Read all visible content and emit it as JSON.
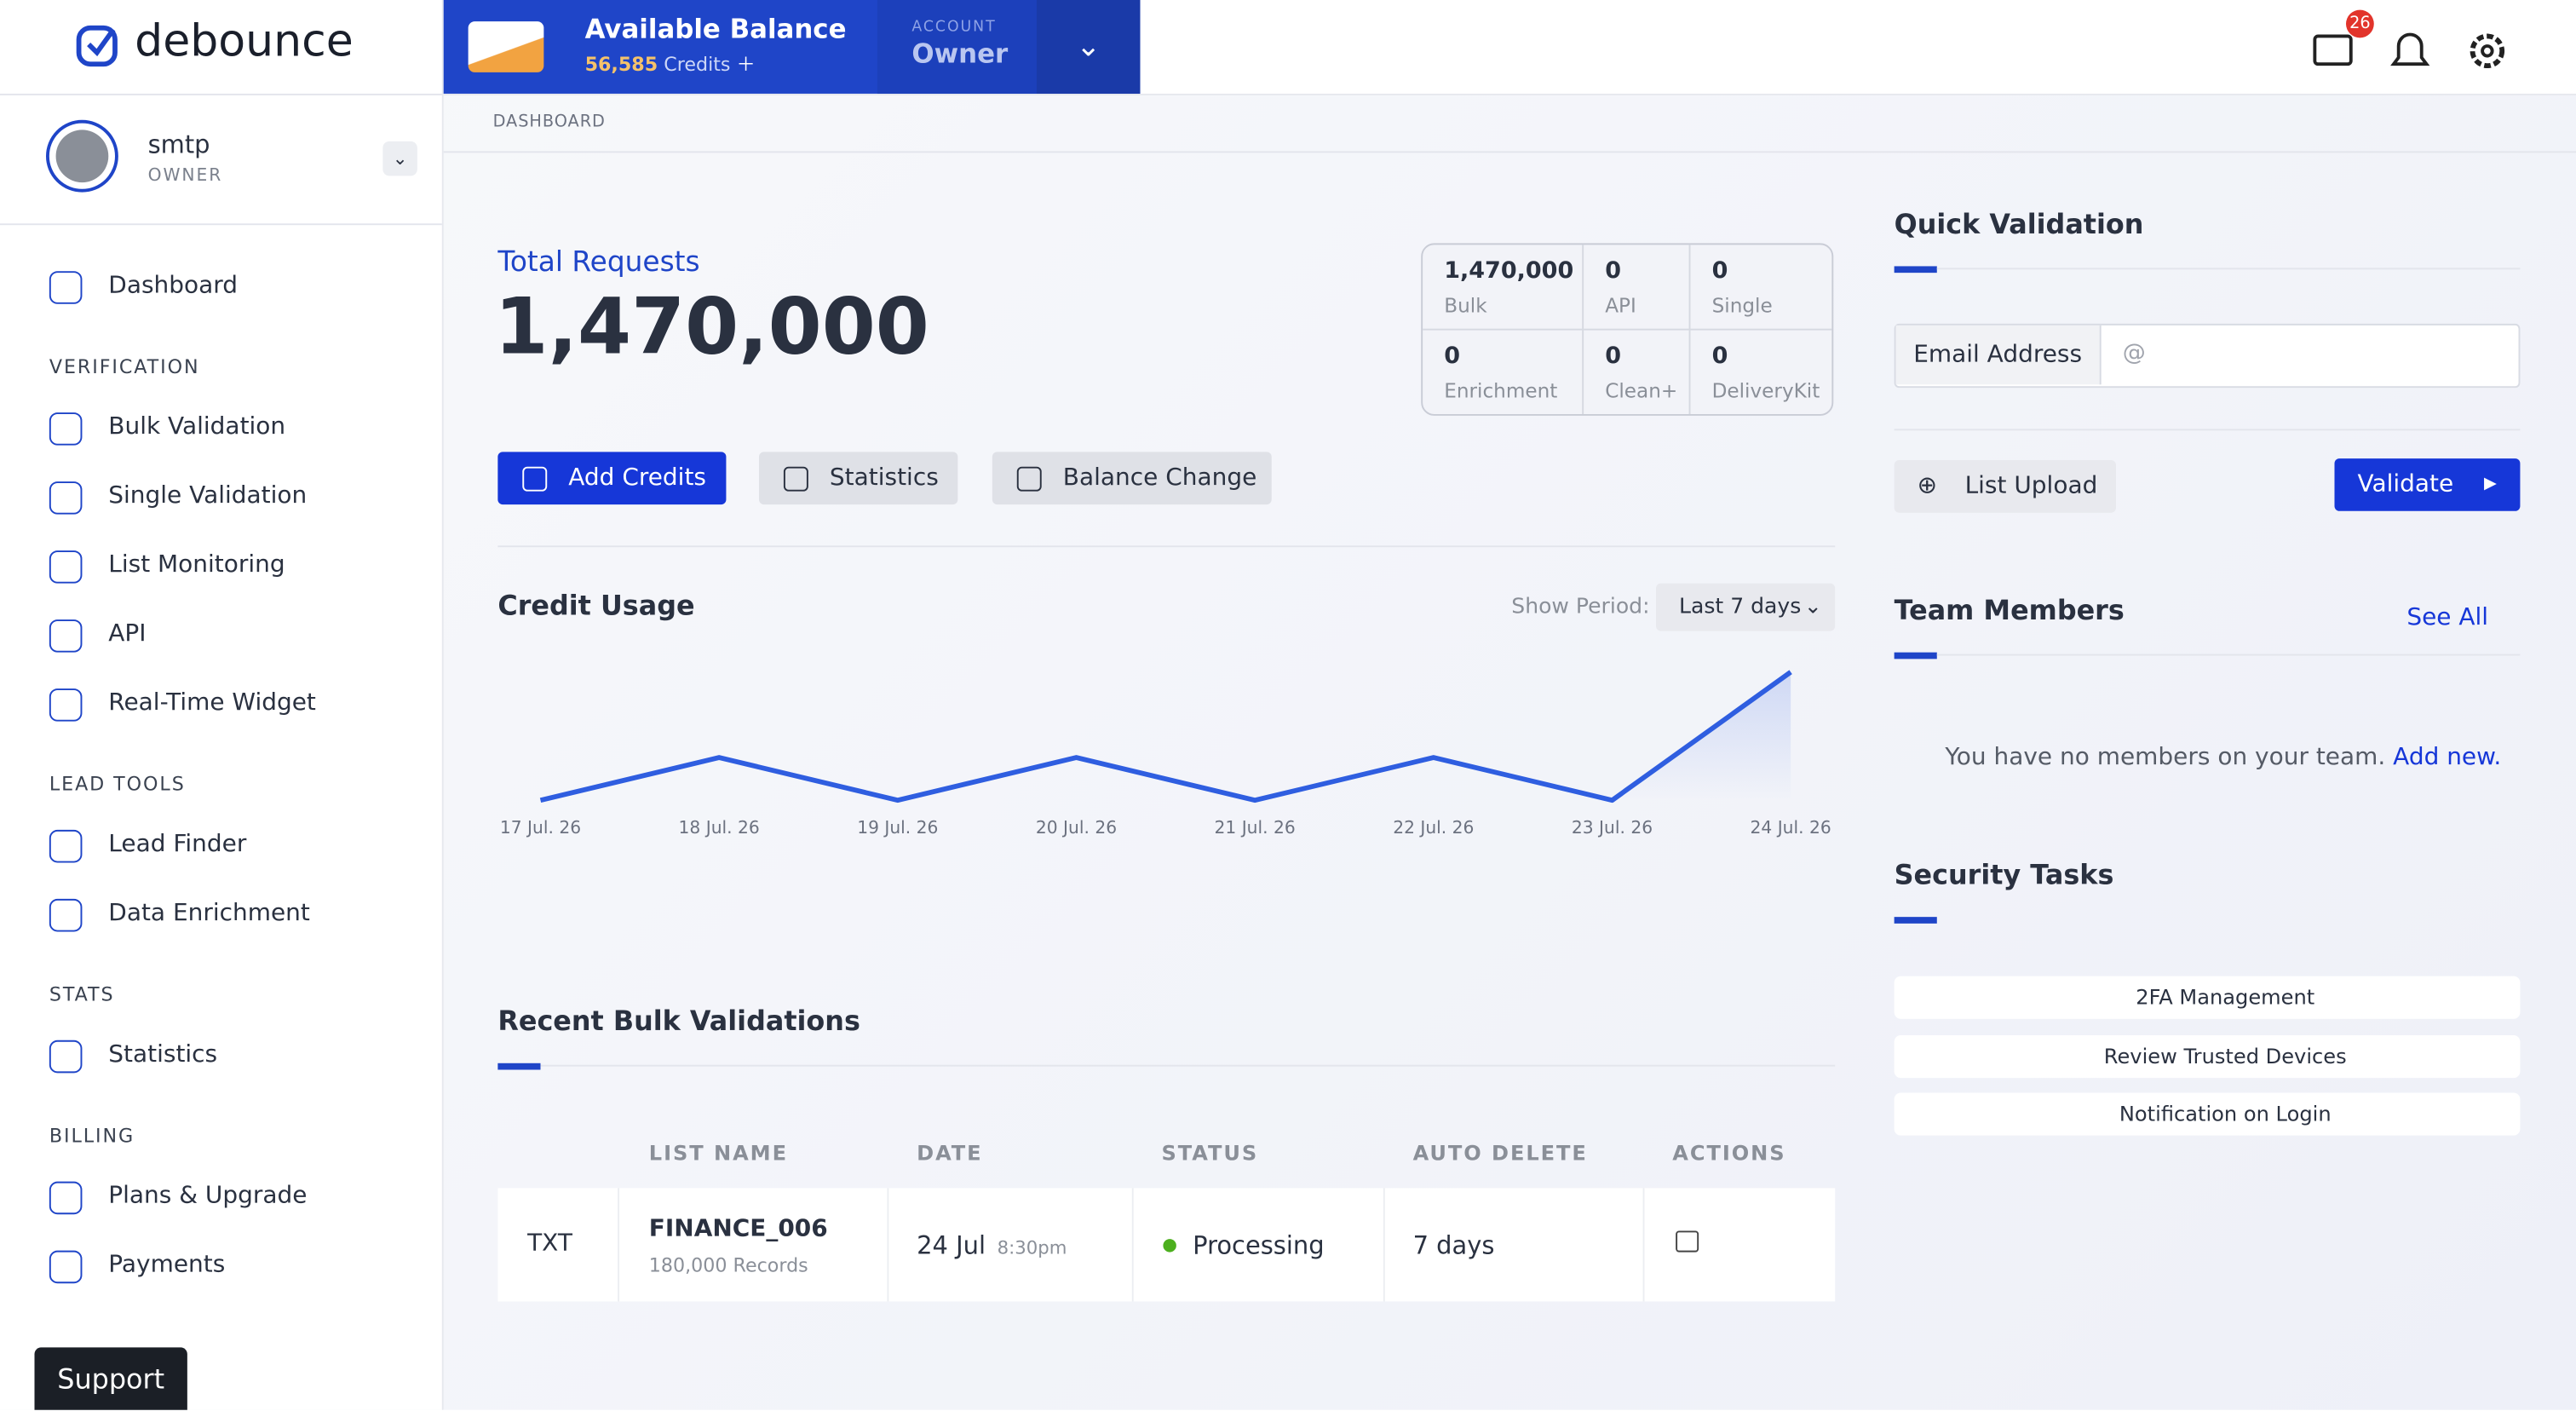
{
  "brand": "debounce",
  "balance": {
    "title": "Available Balance",
    "credits": "56,585",
    "credits_unit": "Credits",
    "account_label": "ACCOUNT",
    "account_role": "Owner"
  },
  "notifications": {
    "count": 26
  },
  "user": {
    "name": "smtp",
    "role": "OWNER"
  },
  "nav": {
    "top": [
      "Dashboard"
    ],
    "sections": [
      {
        "title": "VERIFICATION",
        "items": [
          "Bulk Validation",
          "Single Validation",
          "List Monitoring",
          "API",
          "Real-Time Widget"
        ]
      },
      {
        "title": "LEAD TOOLS",
        "items": [
          "Lead Finder",
          "Data Enrichment"
        ]
      },
      {
        "title": "STATS",
        "items": [
          "Statistics"
        ]
      },
      {
        "title": "BILLING",
        "items": [
          "Plans & Upgrade",
          "Payments"
        ]
      }
    ]
  },
  "breadcrumb": "DASHBOARD",
  "total": {
    "label": "Total Requests",
    "value": "1,470,000"
  },
  "breakdown": [
    {
      "value": "1,470,000",
      "label": "Bulk"
    },
    {
      "value": 0,
      "label": "API"
    },
    {
      "value": 0,
      "label": "Single"
    },
    {
      "value": 0,
      "label": "Enrichment"
    },
    {
      "value": 0,
      "label": "Clean+"
    },
    {
      "value": 0,
      "label": "DeliveryKit"
    }
  ],
  "buttons": [
    "Add Credits",
    "Statistics",
    "Balance Change"
  ],
  "credit_usage": {
    "type": "line",
    "title": "Credit Usage",
    "period_label": "Show Period:",
    "period": "Last 7 days",
    "categories": [
      "17 Jul. 26",
      "18 Jul. 26",
      "19 Jul. 26",
      "20 Jul. 26",
      "21 Jul. 26",
      "22 Jul. 26",
      "23 Jul. 26",
      "24 Jul. 26"
    ],
    "values": [
      0,
      1,
      0,
      1,
      0,
      1,
      0,
      3
    ],
    "ylim": [
      0,
      3
    ],
    "color": "#2f5ee0"
  },
  "recent": {
    "title": "Recent Bulk Validations",
    "columns": [
      "LIST NAME",
      "DATE",
      "STATUS",
      "AUTO DELETE",
      "ACTIONS"
    ],
    "rows": [
      {
        "type": "TXT",
        "name": "FINANCE_006",
        "records": "180,000 Records",
        "date": "24 Jul",
        "time": "8:30pm",
        "status": "Processing",
        "auto_delete": "7 days"
      }
    ]
  },
  "quick": {
    "title": "Quick Validation",
    "email_label": "Email Address",
    "placeholder": "@",
    "list_upload": "List Upload",
    "validate": "Validate"
  },
  "team": {
    "title": "Team Members",
    "see_all": "See All",
    "empty": "You have no members on your team.",
    "add": "Add new."
  },
  "security": {
    "title": "Security Tasks",
    "tasks": [
      "2FA Management",
      "Review Trusted Devices",
      "Notification on Login"
    ]
  },
  "support": "Support"
}
